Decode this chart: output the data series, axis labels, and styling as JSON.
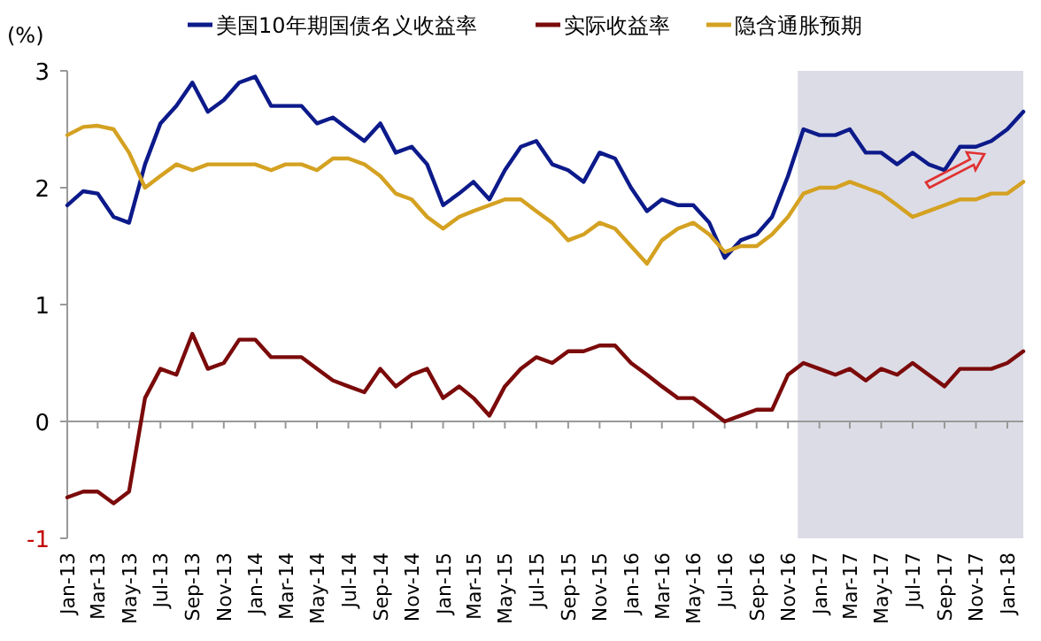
{
  "chart_data": {
    "type": "line",
    "ylabel": "(%)",
    "legend": "top",
    "line_style": "solid",
    "marker": "none",
    "x": [
      "2013-01",
      "2013-02",
      "2013-03",
      "2013-04",
      "2013-05",
      "2013-06",
      "2013-07",
      "2013-08",
      "2013-09",
      "2013-10",
      "2013-11",
      "2013-12",
      "2014-01",
      "2014-02",
      "2014-03",
      "2014-04",
      "2014-05",
      "2014-06",
      "2014-07",
      "2014-08",
      "2014-09",
      "2014-10",
      "2014-11",
      "2014-12",
      "2015-01",
      "2015-02",
      "2015-03",
      "2015-04",
      "2015-05",
      "2015-06",
      "2015-07",
      "2015-08",
      "2015-09",
      "2015-10",
      "2015-11",
      "2015-12",
      "2016-01",
      "2016-02",
      "2016-03",
      "2016-04",
      "2016-05",
      "2016-06",
      "2016-07",
      "2016-08",
      "2016-09",
      "2016-10",
      "2016-11",
      "2016-12",
      "2017-01",
      "2017-02",
      "2017-03",
      "2017-04",
      "2017-05",
      "2017-06",
      "2017-07",
      "2017-08",
      "2017-09",
      "2017-10",
      "2017-11",
      "2017-12",
      "2018-01",
      "2018-02"
    ],
    "xlim": [
      "2013-01",
      "2018-02"
    ],
    "xticks": [
      {
        "value": "2013-01",
        "label": "Jan-13"
      },
      {
        "value": "2013-03",
        "label": "Mar-13"
      },
      {
        "value": "2013-05",
        "label": "May-13"
      },
      {
        "value": "2013-07",
        "label": "Jul-13"
      },
      {
        "value": "2013-09",
        "label": "Sep-13"
      },
      {
        "value": "2013-11",
        "label": "Nov-13"
      },
      {
        "value": "2014-01",
        "label": "Jan-14"
      },
      {
        "value": "2014-03",
        "label": "Mar-14"
      },
      {
        "value": "2014-05",
        "label": "May-14"
      },
      {
        "value": "2014-07",
        "label": "Jul-14"
      },
      {
        "value": "2014-09",
        "label": "Sep-14"
      },
      {
        "value": "2014-11",
        "label": "Nov-14"
      },
      {
        "value": "2015-01",
        "label": "Jan-15"
      },
      {
        "value": "2015-03",
        "label": "Mar-15"
      },
      {
        "value": "2015-05",
        "label": "May-15"
      },
      {
        "value": "2015-07",
        "label": "Jul-15"
      },
      {
        "value": "2015-09",
        "label": "Sep-15"
      },
      {
        "value": "2015-11",
        "label": "Nov-15"
      },
      {
        "value": "2016-01",
        "label": "Jan-16"
      },
      {
        "value": "2016-03",
        "label": "Mar-16"
      },
      {
        "value": "2016-05",
        "label": "May-16"
      },
      {
        "value": "2016-07",
        "label": "Jul-16"
      },
      {
        "value": "2016-09",
        "label": "Sep-16"
      },
      {
        "value": "2016-11",
        "label": "Nov-16"
      },
      {
        "value": "2017-01",
        "label": "Jan-17"
      },
      {
        "value": "2017-03",
        "label": "Mar-17"
      },
      {
        "value": "2017-05",
        "label": "May-17"
      },
      {
        "value": "2017-07",
        "label": "Jul-17"
      },
      {
        "value": "2017-09",
        "label": "Sep-17"
      },
      {
        "value": "2017-11",
        "label": "Nov-17"
      },
      {
        "value": "2018-01",
        "label": "Jan-18"
      }
    ],
    "ylim": [
      -1,
      3
    ],
    "yticks": [
      -1,
      0,
      1,
      2,
      3
    ],
    "bands": [
      {
        "axis": "x",
        "from": "2016-11-20",
        "to": "2018-02",
        "color": "#dcdce6"
      }
    ],
    "series": [
      {
        "name": "美国10年期国债名义收益率",
        "color": "#0c1a8a",
        "values": [
          1.85,
          1.97,
          1.95,
          1.75,
          1.7,
          2.2,
          2.55,
          2.7,
          2.9,
          2.65,
          2.75,
          2.9,
          2.95,
          2.7,
          2.7,
          2.7,
          2.55,
          2.6,
          2.5,
          2.4,
          2.55,
          2.3,
          2.35,
          2.2,
          1.85,
          1.95,
          2.05,
          1.9,
          2.15,
          2.35,
          2.4,
          2.2,
          2.15,
          2.05,
          2.3,
          2.25,
          2.0,
          1.8,
          1.9,
          1.85,
          1.85,
          1.7,
          1.4,
          1.55,
          1.6,
          1.75,
          2.1,
          2.5,
          2.45,
          2.45,
          2.5,
          2.3,
          2.3,
          2.2,
          2.3,
          2.2,
          2.15,
          2.35,
          2.35,
          2.4,
          2.5,
          2.65
        ]
      },
      {
        "name": "实际收益率",
        "color": "#7b0a0a",
        "values": [
          -0.65,
          -0.6,
          -0.6,
          -0.7,
          -0.6,
          0.2,
          0.45,
          0.4,
          0.75,
          0.45,
          0.5,
          0.7,
          0.7,
          0.55,
          0.55,
          0.55,
          0.45,
          0.35,
          0.3,
          0.25,
          0.45,
          0.3,
          0.4,
          0.45,
          0.2,
          0.3,
          0.2,
          0.05,
          0.3,
          0.45,
          0.55,
          0.5,
          0.6,
          0.6,
          0.65,
          0.65,
          0.5,
          0.4,
          0.3,
          0.2,
          0.2,
          0.1,
          0.0,
          0.05,
          0.1,
          0.1,
          0.4,
          0.5,
          0.45,
          0.4,
          0.45,
          0.35,
          0.45,
          0.4,
          0.5,
          0.4,
          0.3,
          0.45,
          0.45,
          0.45,
          0.5,
          0.6
        ]
      },
      {
        "name": "隐含通胀预期",
        "color": "#d4a121",
        "values": [
          2.45,
          2.52,
          2.53,
          2.5,
          2.3,
          2.0,
          2.1,
          2.2,
          2.15,
          2.2,
          2.2,
          2.2,
          2.2,
          2.15,
          2.2,
          2.2,
          2.15,
          2.25,
          2.25,
          2.2,
          2.1,
          1.95,
          1.9,
          1.75,
          1.65,
          1.75,
          1.8,
          1.85,
          1.9,
          1.9,
          1.8,
          1.7,
          1.55,
          1.6,
          1.7,
          1.65,
          1.5,
          1.35,
          1.55,
          1.65,
          1.7,
          1.6,
          1.45,
          1.5,
          1.5,
          1.6,
          1.75,
          1.95,
          2.0,
          2.0,
          2.05,
          2.0,
          1.95,
          1.85,
          1.75,
          1.8,
          1.85,
          1.9,
          1.9,
          1.95,
          1.95,
          2.05
        ]
      }
    ]
  }
}
